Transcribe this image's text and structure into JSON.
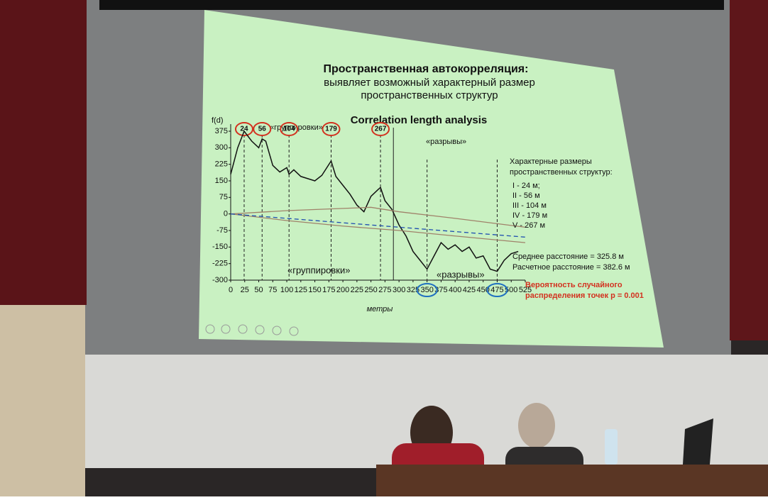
{
  "chart_data": {
    "type": "line",
    "title": "Пространственная автокорреляция:",
    "subtitle": [
      "выявляет возможный характерный размер",
      "пространственных структур"
    ],
    "chart_title": "Correlation length analysis",
    "y_label": "f(d)",
    "x_label": "метры",
    "xlim": [
      0,
      525
    ],
    "ylim": [
      -300,
      375
    ],
    "xticks": [
      0,
      25,
      50,
      75,
      100,
      125,
      150,
      175,
      200,
      225,
      250,
      275,
      300,
      325,
      350,
      375,
      400,
      425,
      450,
      475,
      500,
      525
    ],
    "yticks": [
      375,
      300,
      225,
      150,
      75,
      0,
      -75,
      -150,
      -225,
      -300
    ],
    "series": [
      {
        "color": "#111111",
        "x": [
          0,
          12.5,
          24,
          37.5,
          50,
          56,
          62.5,
          75,
          87.5,
          100,
          104,
          112.5,
          125,
          137.5,
          150,
          162.5,
          179,
          187.5,
          200,
          212.5,
          225,
          237.5,
          250,
          262.5,
          267,
          275,
          287.5,
          300,
          312.5,
          325,
          337.5,
          350,
          362.5,
          375,
          387.5,
          400,
          412.5,
          425,
          437.5,
          450,
          462.5,
          475,
          487.5,
          500,
          512.5
        ],
        "values": [
          180,
          300,
          375,
          330,
          300,
          340,
          330,
          220,
          190,
          210,
          180,
          200,
          170,
          160,
          150,
          175,
          240,
          170,
          130,
          90,
          40,
          10,
          80,
          110,
          120,
          60,
          20,
          -50,
          -100,
          -170,
          -210,
          -250,
          -190,
          -130,
          -160,
          -140,
          -170,
          -150,
          -200,
          -190,
          -250,
          -260,
          -210,
          -180,
          -170
        ]
      },
      {
        "color": "#a0826a",
        "x": [
          0,
          100,
          200,
          250,
          300,
          400,
          525
        ],
        "values": [
          0,
          15,
          25,
          30,
          10,
          -20,
          -60
        ]
      },
      {
        "color": "#a0826a",
        "x": [
          0,
          100,
          200,
          250,
          300,
          400,
          525
        ],
        "values": [
          0,
          -30,
          -55,
          -65,
          -75,
          -100,
          -130
        ]
      },
      {
        "color": "#1f4fb0",
        "dashed": true,
        "x": [
          0,
          525
        ],
        "values": [
          0,
          -105
        ]
      }
    ],
    "peaks": [
      24,
      56,
      104,
      179,
      267
    ],
    "break_lines": [
      290,
      350,
      475
    ],
    "circled_xticks": [
      14,
      19
    ],
    "annotations": {
      "groups_top": "«группировки»",
      "groups_bottom": "«группировки»",
      "breaks_top": "«разрывы»",
      "breaks_bottom": "«разрывы»"
    },
    "sizes_title": [
      "Характерные размеры",
      "пространственных структур:"
    ],
    "sizes": [
      "I - 24 м;",
      "II - 56 м",
      "III - 104 м",
      "IV - 179 м",
      "V -  267 м"
    ],
    "distances": [
      "Среднее расстояние = 325.8 м",
      "Расчетное расстояние = 382.6 м"
    ],
    "probability": [
      "Вероятность случайного",
      "распределения точек p = 0.001"
    ]
  }
}
